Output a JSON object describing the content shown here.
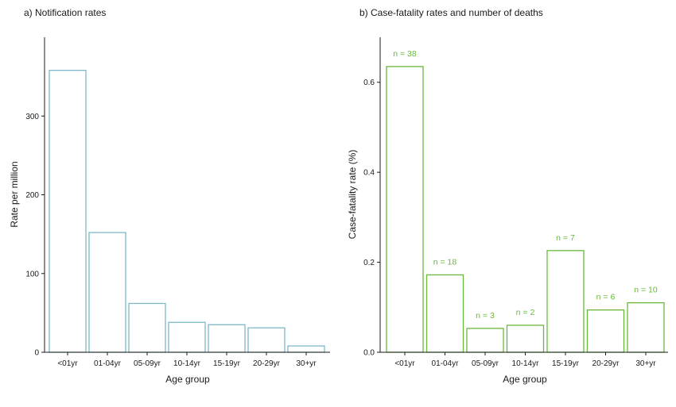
{
  "chart_data": [
    {
      "type": "bar",
      "title": "a) Notification rates",
      "xlabel": "Age group",
      "ylabel": "Rate per million",
      "categories": [
        "<01yr",
        "01-04yr",
        "05-09yr",
        "10-14yr",
        "15-19yr",
        "20-29yr",
        "30+yr"
      ],
      "values": [
        358,
        152,
        62,
        38,
        35,
        31,
        8
      ],
      "ylim": [
        0,
        400
      ],
      "yticks": [
        0,
        100,
        200,
        300
      ],
      "bar_color": "#7fb8c9",
      "grid": false
    },
    {
      "type": "bar",
      "title": "b) Case-fatality rates and number of deaths",
      "xlabel": "Age group",
      "ylabel": "Case-fatality rate (%)",
      "categories": [
        "<01yr",
        "01-04yr",
        "05-09yr",
        "10-14yr",
        "15-19yr",
        "20-29yr",
        "30+yr"
      ],
      "values": [
        0.635,
        0.172,
        0.053,
        0.06,
        0.226,
        0.094,
        0.11
      ],
      "annotations": [
        "n = 38",
        "n = 18",
        "n = 3",
        "n = 2",
        "n = 7",
        "n = 6",
        "n = 10"
      ],
      "ylim": [
        0,
        0.7
      ],
      "yticks": [
        0.0,
        0.2,
        0.4,
        0.6
      ],
      "ytick_labels": [
        "0.0",
        "0.2",
        "0.4",
        "0.6"
      ],
      "bar_color": "#6ab83c",
      "annotation_color": "#6ab83c",
      "grid": false
    }
  ]
}
